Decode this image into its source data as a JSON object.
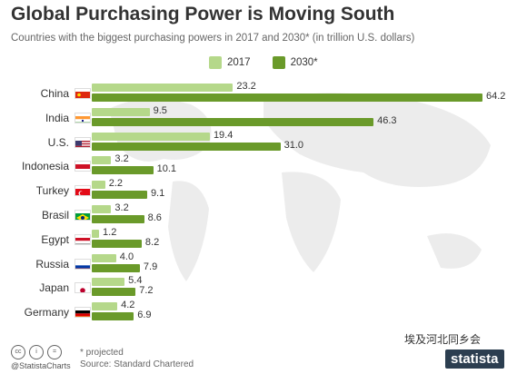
{
  "header": {
    "title": "Global Purchasing Power is Moving South",
    "subtitle": "Countries with the biggest purchasing powers in 2017 and 2030* (in trillion U.S. dollars)"
  },
  "legend": {
    "items": [
      {
        "label": "2017",
        "color": "#b5d88a"
      },
      {
        "label": "2030*",
        "color": "#6a9a2a"
      }
    ]
  },
  "chart_data": {
    "type": "bar",
    "title": "Global Purchasing Power is Moving South",
    "subtitle": "Countries with the biggest purchasing powers in 2017 and 2030* (in trillion U.S. dollars)",
    "categories": [
      "China",
      "India",
      "U.S.",
      "Indonesia",
      "Turkey",
      "Brasil",
      "Egypt",
      "Russia",
      "Japan",
      "Germany"
    ],
    "series": [
      {
        "name": "2017",
        "values": [
          23.2,
          9.5,
          19.4,
          3.2,
          2.2,
          3.2,
          1.2,
          4.0,
          5.4,
          4.2
        ]
      },
      {
        "name": "2030*",
        "values": [
          64.2,
          46.3,
          31.0,
          10.1,
          9.1,
          8.6,
          8.2,
          7.9,
          7.2,
          6.9
        ]
      }
    ],
    "value_labels": {
      "2017": [
        "23.2",
        "9.5",
        "19.4",
        "3.2",
        "2.2",
        "3.2",
        "1.2",
        "4.0",
        "5.4",
        "4.2"
      ],
      "2030*": [
        "64.2",
        "46.3",
        "31.0",
        "10.1",
        "9.1",
        "8.6",
        "8.2",
        "7.9",
        "7.2",
        "6.9"
      ]
    },
    "orientation": "horizontal",
    "xlim": [
      0,
      64.2
    ],
    "legend_position": "top",
    "grid": false
  },
  "footer": {
    "credit": "@StatistaCharts",
    "note": "* projected",
    "source": "Source: Standard Chartered",
    "watermark": "埃及河北同乡会",
    "brand": "statista"
  }
}
